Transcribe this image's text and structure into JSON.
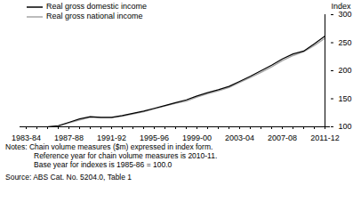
{
  "chart_data": {
    "type": "line",
    "y_label": "Index",
    "categories": [
      "1983-84",
      null,
      null,
      null,
      "1987-88",
      null,
      null,
      null,
      "1991-92",
      null,
      null,
      null,
      "1995-96",
      null,
      null,
      null,
      "1999-00",
      null,
      null,
      null,
      "2003-04",
      null,
      null,
      null,
      "2007-08",
      null,
      null,
      null,
      "2011-12"
    ],
    "series": [
      {
        "name": "Real gross domestic income",
        "color": "#000000",
        "values": [
          null,
          null,
          100,
          102,
          108,
          114,
          118,
          117,
          117,
          120,
          124,
          128,
          133,
          138,
          143,
          148,
          155,
          161,
          166,
          172,
          181,
          190,
          200,
          210,
          221,
          230,
          235,
          248,
          262
        ]
      },
      {
        "name": "Real gross national income",
        "color": "#a6a6a6",
        "values": [
          null,
          null,
          100,
          101,
          107,
          112,
          117,
          116,
          116,
          119,
          123,
          127,
          132,
          137,
          142,
          146,
          153,
          159,
          164,
          170,
          179,
          188,
          197,
          207,
          218,
          227,
          234,
          245,
          258
        ]
      }
    ],
    "ylim": [
      100,
      300
    ],
    "yticks": [
      100,
      150,
      200,
      250,
      300
    ],
    "legend": "top-left",
    "grid": false,
    "notes": [
      "Notes: Chain volume measures ($m) expressed in index form.",
      "Reference year for chain volume measures is 2010-11.",
      "Base year for indexes is 1985-86 = 100.0"
    ],
    "source": "Source: ABS Cat. No. 5204.0, Table 1"
  }
}
